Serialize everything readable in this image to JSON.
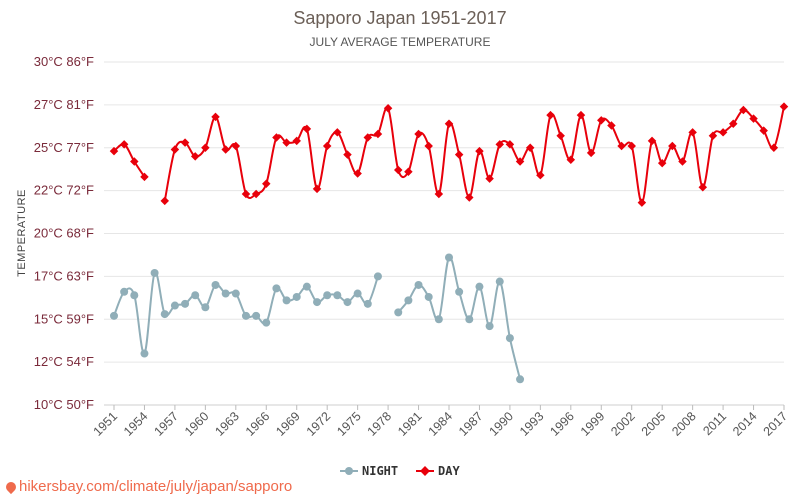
{
  "watermark": "hikersbay.com/climate/july/japan/sapporo",
  "chart_data": {
    "type": "line",
    "title": "Sapporo Japan 1951-2017",
    "subtitle": "JULY AVERAGE TEMPERATURE",
    "ylabel": "TEMPERATURE",
    "ylim": [
      10,
      30
    ],
    "grid": true,
    "legend_position": "bottom",
    "y_ticks": [
      {
        "value": 10,
        "label": "10°C 50°F"
      },
      {
        "value": 12.5,
        "label": "12°C 54°F"
      },
      {
        "value": 15,
        "label": "15°C 59°F"
      },
      {
        "value": 17.5,
        "label": "17°C 63°F"
      },
      {
        "value": 20,
        "label": "20°C 68°F"
      },
      {
        "value": 22.5,
        "label": "22°C 72°F"
      },
      {
        "value": 25,
        "label": "25°C 77°F"
      },
      {
        "value": 27.5,
        "label": "27°C 81°F"
      },
      {
        "value": 30,
        "label": "30°C 86°F"
      }
    ],
    "x_ticks": [
      "1951",
      "1954",
      "1957",
      "1960",
      "1963",
      "1966",
      "1969",
      "1972",
      "1975",
      "1978",
      "1981",
      "1984",
      "1987",
      "1990",
      "1993",
      "1996",
      "1999",
      "2002",
      "2005",
      "2008",
      "2011",
      "2014",
      "2017"
    ],
    "x": [
      1951,
      1952,
      1953,
      1954,
      1955,
      1956,
      1957,
      1958,
      1959,
      1960,
      1961,
      1962,
      1963,
      1964,
      1965,
      1966,
      1967,
      1968,
      1969,
      1970,
      1971,
      1972,
      1973,
      1974,
      1975,
      1976,
      1977,
      1978,
      1979,
      1980,
      1981,
      1982,
      1983,
      1984,
      1985,
      1986,
      1987,
      1988,
      1989,
      1990,
      1991,
      1992,
      1993,
      1994,
      1995,
      1996,
      1997,
      1998,
      1999,
      2000,
      2001,
      2002,
      2003,
      2004,
      2005,
      2006,
      2007,
      2008,
      2009,
      2010,
      2011,
      2012,
      2013,
      2014,
      2015,
      2016,
      2017
    ],
    "series": [
      {
        "name": "NIGHT",
        "color": "#90aeb8",
        "values": [
          15.2,
          16.6,
          16.4,
          13.0,
          17.7,
          15.3,
          15.8,
          15.9,
          16.4,
          15.7,
          17.0,
          16.5,
          16.5,
          15.2,
          15.2,
          14.8,
          16.8,
          16.1,
          16.3,
          16.9,
          16.0,
          16.4,
          16.4,
          16.0,
          16.5,
          15.9,
          17.5,
          null,
          15.4,
          16.1,
          17.0,
          16.3,
          15.0,
          18.6,
          16.6,
          15.0,
          16.9,
          14.6,
          17.2,
          13.9,
          11.5,
          null,
          null,
          null,
          null,
          null,
          null,
          null,
          null,
          null,
          null,
          null,
          null,
          null,
          null,
          null,
          null,
          null,
          null,
          null,
          null,
          null,
          null,
          null,
          null,
          null,
          null
        ]
      },
      {
        "name": "DAY",
        "color": "#e8000b",
        "values": [
          24.8,
          25.2,
          24.2,
          23.3,
          null,
          21.9,
          24.9,
          25.3,
          24.5,
          25.0,
          26.8,
          24.9,
          25.1,
          22.3,
          22.3,
          22.9,
          25.6,
          25.3,
          25.4,
          26.1,
          22.6,
          25.1,
          25.9,
          24.6,
          23.5,
          25.6,
          25.8,
          27.3,
          23.7,
          23.6,
          25.8,
          25.1,
          22.3,
          26.4,
          24.6,
          22.1,
          24.8,
          23.2,
          25.2,
          25.2,
          24.2,
          25.0,
          23.4,
          26.9,
          25.7,
          24.3,
          26.9,
          24.7,
          26.6,
          26.3,
          25.1,
          25.1,
          21.8,
          25.4,
          24.1,
          25.1,
          24.2,
          25.9,
          22.7,
          25.7,
          25.9,
          26.4,
          27.2,
          26.7,
          26.0,
          25.0,
          27.4
        ]
      }
    ]
  }
}
